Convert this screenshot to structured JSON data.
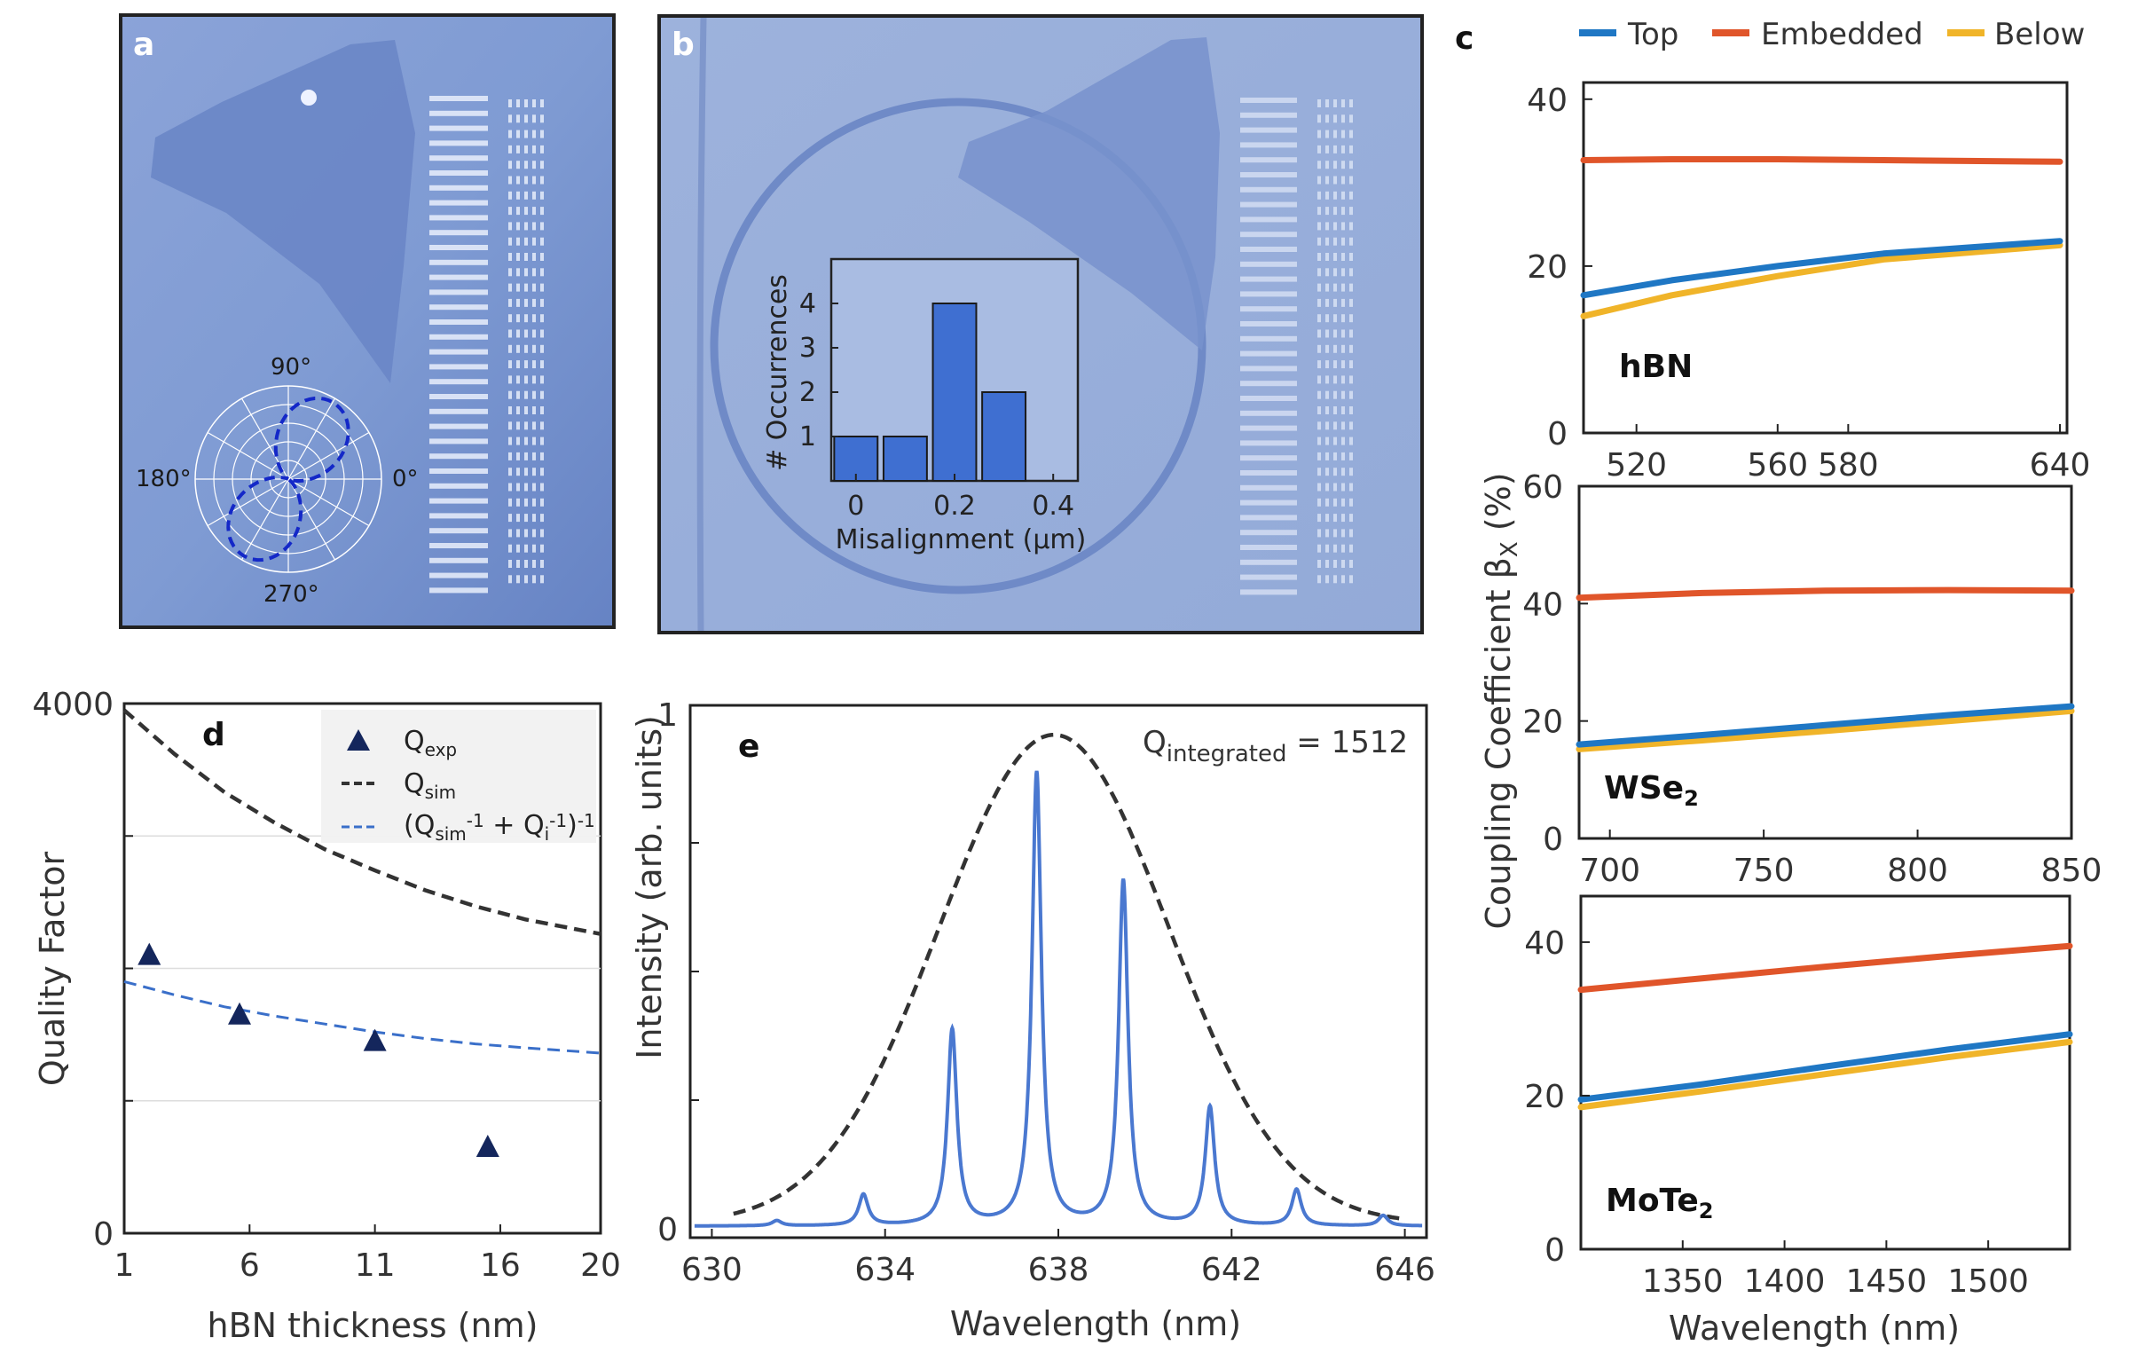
{
  "panels": {
    "a": {
      "label": "a",
      "polar_labels": [
        "90°",
        "180°",
        "0°",
        "270°"
      ]
    },
    "b": {
      "label": "b"
    },
    "c": {
      "label": "c"
    },
    "d": {
      "label": "d"
    },
    "e": {
      "label": "e"
    }
  },
  "colors": {
    "top": "#1f77c4",
    "embedded": "#e0552a",
    "below": "#f0b429",
    "navy": "#14265c",
    "sim": "#333333",
    "fit": "#3a6fc9",
    "spectrum": "#4a78d0",
    "bars": "#3f6fd1"
  },
  "chart_data": [
    {
      "id": "b_inset",
      "type": "bar",
      "xlabel": "Misalignment (µm)",
      "ylabel": "# Occurrences",
      "x": [
        0,
        0.1,
        0.2,
        0.3
      ],
      "values": [
        1,
        1,
        4,
        2
      ],
      "xticks": [
        "0",
        "0.2",
        "0.4"
      ],
      "yticks": [
        "1",
        "2",
        "3",
        "4"
      ],
      "xlim": [
        -0.05,
        0.45
      ],
      "ylim": [
        0,
        5
      ]
    },
    {
      "id": "c_hbn",
      "type": "line",
      "material": "hBN",
      "xlim": [
        505,
        642
      ],
      "ylim": [
        0,
        42
      ],
      "xticks": [
        "520",
        "560",
        "580",
        "640"
      ],
      "yticks": [
        "0",
        "20",
        "40"
      ],
      "series": [
        {
          "name": "Top",
          "x": [
            505,
            530,
            560,
            590,
            640
          ],
          "y": [
            16.5,
            18.3,
            20.0,
            21.5,
            23.0
          ]
        },
        {
          "name": "Embedded",
          "x": [
            505,
            530,
            560,
            590,
            640
          ],
          "y": [
            32.7,
            32.8,
            32.8,
            32.7,
            32.5
          ]
        },
        {
          "name": "Below",
          "x": [
            505,
            530,
            560,
            590,
            640
          ],
          "y": [
            14.0,
            16.5,
            18.8,
            20.8,
            22.5
          ]
        }
      ]
    },
    {
      "id": "c_wse2",
      "type": "line",
      "material": "WSe2",
      "xlim": [
        690,
        850
      ],
      "ylim": [
        0,
        60
      ],
      "xticks": [
        "700",
        "750",
        "800",
        "850"
      ],
      "yticks": [
        "0",
        "20",
        "40",
        "60"
      ],
      "ylabel": "Coupling Coefficient βX (%)",
      "series": [
        {
          "name": "Top",
          "x": [
            690,
            730,
            770,
            810,
            850
          ],
          "y": [
            16.0,
            17.6,
            19.3,
            21.0,
            22.5
          ]
        },
        {
          "name": "Embedded",
          "x": [
            690,
            730,
            770,
            810,
            850
          ],
          "y": [
            41.0,
            41.8,
            42.2,
            42.3,
            42.2
          ]
        },
        {
          "name": "Below",
          "x": [
            690,
            730,
            770,
            810,
            850
          ],
          "y": [
            15.2,
            16.7,
            18.3,
            20.0,
            21.7
          ]
        }
      ]
    },
    {
      "id": "c_mote2",
      "type": "line",
      "material": "MoTe2",
      "xlim": [
        1300,
        1540
      ],
      "ylim": [
        0,
        46
      ],
      "xticks": [
        "1350",
        "1400",
        "1450",
        "1500"
      ],
      "yticks": [
        "0",
        "20",
        "40"
      ],
      "xlabel": "Wavelength (nm)",
      "series": [
        {
          "name": "Top",
          "x": [
            1300,
            1360,
            1420,
            1480,
            1540
          ],
          "y": [
            19.5,
            21.5,
            23.8,
            26.0,
            28.0
          ]
        },
        {
          "name": "Embedded",
          "x": [
            1300,
            1360,
            1420,
            1480,
            1540
          ],
          "y": [
            33.8,
            35.3,
            36.8,
            38.2,
            39.5
          ]
        },
        {
          "name": "Below",
          "x": [
            1300,
            1360,
            1420,
            1480,
            1540
          ],
          "y": [
            18.5,
            20.6,
            22.8,
            25.0,
            27.0
          ]
        }
      ]
    },
    {
      "id": "d",
      "type": "scatter",
      "xlabel": "hBN thickness (nm)",
      "ylabel": "Quality Factor",
      "xlim": [
        1,
        20
      ],
      "ylim": [
        0,
        4000
      ],
      "xticks": [
        "1",
        "6",
        "11",
        "16",
        "20"
      ],
      "yticks": [
        "0",
        "4000"
      ],
      "legend": [
        "Q",
        "exp",
        "Q",
        "sim",
        "(Q",
        "sim",
        "-1",
        " + Q",
        "i",
        "-1",
        ")",
        "-1"
      ],
      "series": [
        {
          "name": "Q_exp",
          "x": [
            2,
            5.6,
            11,
            15.5
          ],
          "y": [
            2100,
            1650,
            1450,
            650
          ]
        },
        {
          "name": "Q_sim",
          "x": [
            1,
            3,
            5,
            7,
            9,
            11,
            13,
            15,
            17,
            20
          ],
          "y": [
            3950,
            3620,
            3330,
            3100,
            2900,
            2740,
            2590,
            2470,
            2370,
            2260
          ]
        },
        {
          "name": "(Q_sim^-1 + Q_i^-1)^-1",
          "x": [
            1,
            3,
            5,
            7,
            9,
            11,
            13,
            15,
            17,
            20
          ],
          "y": [
            1900,
            1800,
            1710,
            1640,
            1580,
            1520,
            1470,
            1430,
            1400,
            1360
          ]
        }
      ]
    },
    {
      "id": "e",
      "type": "line",
      "xlabel": "Wavelength (nm)",
      "ylabel": "Intensity (arb. units)",
      "xlim": [
        629.5,
        646.5
      ],
      "ylim": [
        0,
        1
      ],
      "xticks": [
        "630",
        "634",
        "638",
        "642",
        "646"
      ],
      "yticks": [
        "0",
        "1"
      ],
      "annotation": {
        "prefix": "Q",
        "sub": "integrated",
        "suffix": " = 1512"
      },
      "envelope": {
        "center": 637.9,
        "sigma": 2.65,
        "amplitude": 0.95,
        "offset": 0.02
      },
      "peaks": [
        {
          "x": 631.5,
          "h": 0.01
        },
        {
          "x": 633.5,
          "h": 0.06
        },
        {
          "x": 635.55,
          "h": 0.38
        },
        {
          "x": 637.5,
          "h": 0.88
        },
        {
          "x": 639.5,
          "h": 0.67
        },
        {
          "x": 641.5,
          "h": 0.23
        },
        {
          "x": 643.5,
          "h": 0.07
        },
        {
          "x": 645.5,
          "h": 0.02
        }
      ],
      "peak_width": 0.13,
      "baseline": 0.005
    }
  ],
  "legend_c": [
    "Top",
    "Embedded",
    "Below"
  ]
}
